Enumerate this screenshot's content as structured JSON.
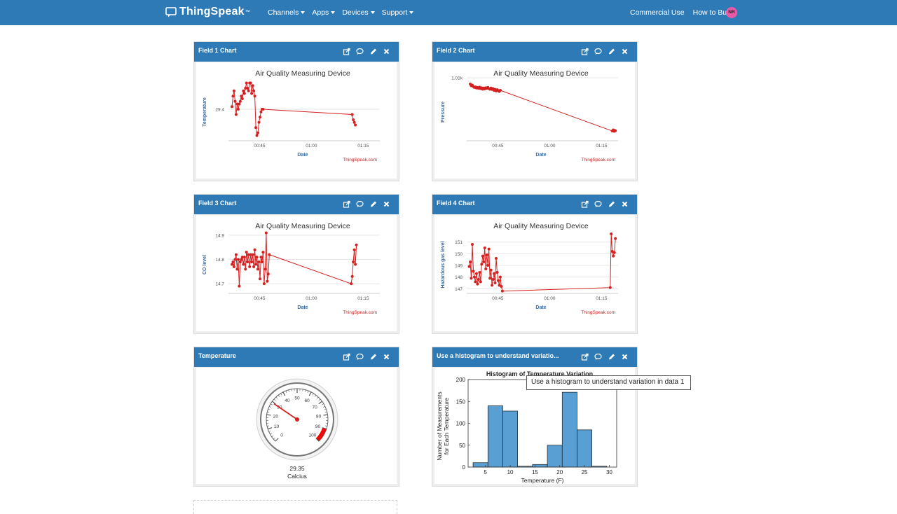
{
  "nav": {
    "brand": "ThingSpeak",
    "brand_tm": "™",
    "menu": [
      "Channels",
      "Apps",
      "Devices",
      "Support"
    ],
    "right": [
      "Commercial Use",
      "How to Buy"
    ],
    "avatar": "NR"
  },
  "colors": {
    "nav": "#2e7ab6",
    "series": "#d62020",
    "hist_bar": "#5a9fd4",
    "gauge_red": "#ff0000"
  },
  "widget_icons": [
    "external-link-icon",
    "comment-icon",
    "pencil-icon",
    "close-icon"
  ],
  "widgets": {
    "w1": {
      "title": "Field 1 Chart"
    },
    "w2": {
      "title": "Field 2 Chart"
    },
    "w3": {
      "title": "Field 3 Chart"
    },
    "w4": {
      "title": "Field 4 Chart"
    },
    "w5": {
      "title": "Temperature"
    },
    "w6": {
      "title": "Use a histogram to understand variatio..."
    }
  },
  "chart_data": [
    {
      "type": "line",
      "title": "Air Quality Measuring Device",
      "xlabel": "Date",
      "ylabel": "Temperature",
      "credit": "ThingSpeak.com",
      "xticks": [
        "00:45",
        "01:00",
        "01:15"
      ],
      "yticks": [
        29.4
      ],
      "xlim": [
        0.6,
        1.33
      ],
      "ylim": [
        29.28,
        29.52
      ],
      "x": [
        0.617,
        0.622,
        0.627,
        0.632,
        0.637,
        0.642,
        0.647,
        0.652,
        0.657,
        0.662,
        0.667,
        0.672,
        0.677,
        0.682,
        0.687,
        0.692,
        0.697,
        0.702,
        0.707,
        0.712,
        0.717,
        0.722,
        0.727,
        0.732,
        0.737,
        0.742,
        0.747,
        0.752,
        0.757,
        0.762,
        0.767,
        1.197,
        1.202,
        1.207,
        1.212
      ],
      "y": [
        29.41,
        29.45,
        29.47,
        29.43,
        29.38,
        29.42,
        29.4,
        29.42,
        29.43,
        29.45,
        29.44,
        29.47,
        29.46,
        29.48,
        29.5,
        29.48,
        29.47,
        29.5,
        29.5,
        29.46,
        29.49,
        29.47,
        29.45,
        29.33,
        29.3,
        29.31,
        29.35,
        29.37,
        29.39,
        29.4,
        29.4,
        29.38,
        29.36,
        29.35,
        29.34
      ]
    },
    {
      "type": "line",
      "title": "Air Quality Measuring Device",
      "xlabel": "Date",
      "ylabel": "Pressure",
      "credit": "ThingSpeak.com",
      "xticks": [
        "00:45",
        "01:00",
        "01:15"
      ],
      "yticks": [
        "1.01k"
      ],
      "xlim": [
        0.6,
        1.33
      ],
      "ylim": [
        990,
        1012
      ],
      "x": [
        0.617,
        0.622,
        0.627,
        0.632,
        0.637,
        0.642,
        0.647,
        0.652,
        0.657,
        0.662,
        0.667,
        0.672,
        0.677,
        0.682,
        0.687,
        0.692,
        0.697,
        0.702,
        0.707,
        0.712,
        0.717,
        0.722,
        0.727,
        0.732,
        0.737,
        0.742,
        0.747,
        0.752,
        0.757,
        0.762,
        1.302,
        1.307,
        1.312,
        1.317
      ],
      "y": [
        1009.8,
        1009.2,
        1009.4,
        1008.9,
        1008.6,
        1008.8,
        1008.4,
        1008.6,
        1008.3,
        1008.7,
        1008.2,
        1008.5,
        1008.0,
        1008.4,
        1008.1,
        1008.5,
        1008.3,
        1008.6,
        1008.2,
        1008.0,
        1008.4,
        1007.9,
        1008.2,
        1007.6,
        1007.9,
        1007.4,
        1007.8,
        1007.5,
        1007.2,
        1007.6,
        993.4,
        993.8,
        993.3,
        993.5
      ]
    },
    {
      "type": "line",
      "title": "Air Quality Measuring Device",
      "xlabel": "Date",
      "ylabel": "CO level",
      "credit": "ThingSpeak.com",
      "xticks": [
        "00:45",
        "01:00",
        "01:15"
      ],
      "yticks": [
        14.7,
        14.8,
        14.9
      ],
      "xlim": [
        0.6,
        1.33
      ],
      "ylim": [
        14.66,
        14.92
      ],
      "x": [
        0.617,
        0.622,
        0.627,
        0.632,
        0.637,
        0.642,
        0.647,
        0.652,
        0.657,
        0.662,
        0.667,
        0.672,
        0.677,
        0.682,
        0.687,
        0.692,
        0.697,
        0.702,
        0.707,
        0.712,
        0.717,
        0.722,
        0.727,
        0.732,
        0.737,
        0.742,
        0.747,
        0.752,
        0.757,
        0.762,
        0.767,
        0.772,
        0.777,
        0.782,
        0.787,
        0.792,
        0.797,
        1.192,
        1.197,
        1.202,
        1.207,
        1.212,
        1.217
      ],
      "y": [
        14.78,
        14.79,
        14.77,
        14.8,
        14.82,
        14.76,
        14.8,
        14.69,
        14.79,
        14.8,
        14.81,
        14.78,
        14.81,
        14.76,
        14.83,
        14.79,
        14.82,
        14.77,
        14.82,
        14.79,
        14.82,
        14.77,
        14.84,
        14.78,
        14.81,
        14.76,
        14.79,
        14.72,
        14.81,
        14.79,
        14.83,
        14.7,
        14.76,
        14.91,
        14.71,
        14.74,
        14.82,
        14.7,
        14.73,
        14.79,
        14.84,
        14.78,
        14.86
      ]
    },
    {
      "type": "line",
      "title": "Air Quality Measuring Device",
      "xlabel": "Date",
      "ylabel": "Hazardous gas level",
      "credit": "ThingSpeak.com",
      "xticks": [
        "00:45",
        "01:00",
        "01:15"
      ],
      "yticks": [
        147,
        148,
        149,
        150,
        151
      ],
      "xlim": [
        0.6,
        1.33
      ],
      "ylim": [
        146.6,
        152.0
      ],
      "x": [
        0.612,
        0.617,
        0.622,
        0.627,
        0.632,
        0.637,
        0.642,
        0.647,
        0.652,
        0.657,
        0.662,
        0.667,
        0.672,
        0.677,
        0.682,
        0.687,
        0.692,
        0.697,
        0.702,
        0.707,
        0.712,
        0.717,
        0.722,
        0.727,
        0.732,
        0.737,
        0.742,
        0.747,
        0.752,
        0.757,
        0.762,
        0.767,
        0.772,
        1.292,
        1.297,
        1.302,
        1.307,
        1.312,
        1.317
      ],
      "y": [
        148.9,
        149.3,
        147.9,
        150.8,
        148.5,
        148.0,
        147.6,
        148.3,
        147.4,
        147.8,
        148.4,
        147.6,
        149.1,
        149.8,
        149.3,
        150.5,
        148.7,
        149.9,
        149.0,
        150.4,
        147.9,
        148.6,
        147.3,
        147.8,
        148.3,
        147.5,
        149.6,
        148.4,
        147.7,
        147.3,
        148.0,
        147.2,
        146.8,
        147.1,
        151.7,
        150.2,
        149.8,
        150.1,
        151.3
      ]
    },
    {
      "type": "gauge",
      "title": "Temperature",
      "value": 29.35,
      "units": "Calcius",
      "min": 0,
      "max": 100,
      "ticks": [
        0,
        10,
        20,
        30,
        40,
        50,
        60,
        70,
        80,
        90,
        100
      ],
      "red_range": [
        90,
        100
      ]
    },
    {
      "type": "bar",
      "title": "Histogram of Temperature Variation",
      "xlabel": "Temperature (F)",
      "ylabel_lines": [
        "Number of Measurements",
        "for Each Temperature"
      ],
      "bin_edges": [
        2.5,
        5.5,
        8.5,
        11.5,
        14.5,
        17.5,
        20.5,
        23.5,
        26.5,
        29.5
      ],
      "values": [
        10,
        140,
        128,
        2,
        6,
        50,
        171,
        85,
        2
      ],
      "xticks": [
        5,
        10,
        15,
        20,
        25,
        30
      ],
      "yticks": [
        0,
        50,
        100,
        150,
        200
      ],
      "xlim": [
        1.5,
        31.5
      ],
      "ylim": [
        0,
        200
      ]
    }
  ],
  "tooltip": "Use a histogram to understand variation in data 1"
}
